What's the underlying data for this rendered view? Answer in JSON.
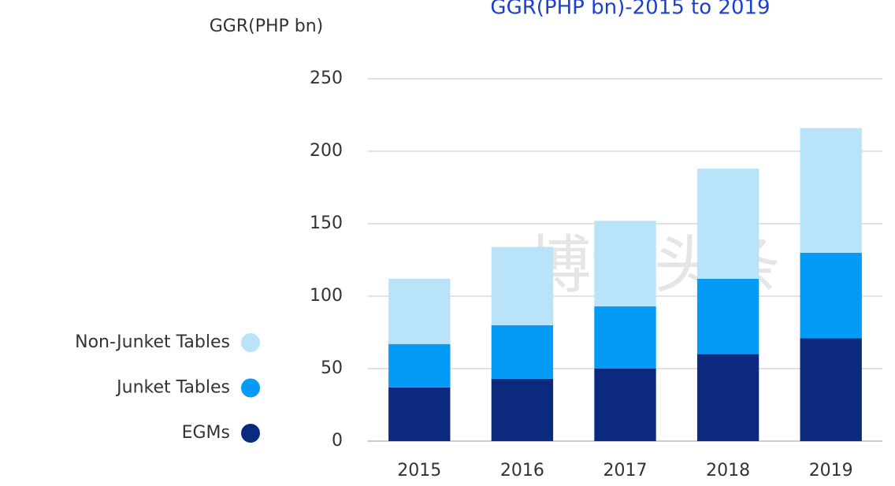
{
  "chart_data": {
    "type": "bar",
    "stacked": true,
    "title": "GGR(PHP bn)-2015 to 2019",
    "y_label": "GGR(PHP bn)",
    "watermark": "博讯头条",
    "categories": [
      "2015",
      "2016",
      "2017",
      "2018",
      "2019"
    ],
    "series": [
      {
        "name": "EGMs",
        "color": "#0b2a7d",
        "values": [
          37,
          43,
          50,
          60,
          71
        ]
      },
      {
        "name": "Junket Tables",
        "color": "#039bf6",
        "values": [
          30,
          37,
          43,
          52,
          59
        ]
      },
      {
        "name": "Non-Junket Tables",
        "color": "#b9e3f9",
        "values": [
          45,
          54,
          59,
          76,
          86
        ]
      }
    ],
    "ylim": [
      0,
      250
    ],
    "yticks": [
      0,
      50,
      100,
      150,
      200,
      250
    ],
    "grid": true,
    "legend": "left"
  }
}
